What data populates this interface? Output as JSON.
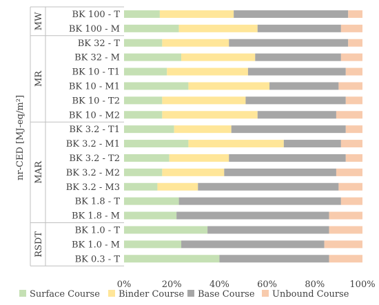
{
  "chart_data": {
    "type": "bar",
    "stacked": "percent",
    "orientation": "horizontal",
    "ylabel": "nr-CED [MJ-eq/m²]",
    "xlim": [
      0,
      100
    ],
    "x_ticks": [
      "0%",
      "20%",
      "40%",
      "60%",
      "80%",
      "100%"
    ],
    "legend_position": "bottom",
    "grid": false,
    "categories": [
      "BK 100 - T",
      "BK 100 - M",
      "BK 32 - T",
      "BK 32 - M",
      "BK 10 - T1",
      "BK 10 - M1",
      "BK 10 - T2",
      "BK 10 - M2",
      "BK 3.2 - T1",
      "BK 3.2 - M1",
      "BK 3.2 - T2",
      "BK 3.2 - M2",
      "BK 3.2 - M3",
      "BK 1.8 - T",
      "BK 1.8 - M",
      "BK 1.0 - T",
      "BK 1.0 - M",
      "BK 0.3 - T"
    ],
    "groups": [
      {
        "label": "MW",
        "count": 2
      },
      {
        "label": "MR",
        "count": 6
      },
      {
        "label": "MAR",
        "count": 7
      },
      {
        "label": "RSDT",
        "count": 3
      }
    ],
    "series": [
      {
        "name": "Surface Course",
        "color": "#c5e0b4",
        "values": [
          15,
          23,
          16,
          24,
          18,
          27,
          16,
          16,
          21,
          27,
          19,
          16,
          14,
          23,
          22,
          35,
          24,
          40
        ]
      },
      {
        "name": "Binder Course",
        "color": "#ffe699",
        "values": [
          31,
          33,
          28,
          31,
          34,
          34,
          35,
          40,
          24,
          40,
          25,
          26,
          17,
          0,
          0,
          0,
          0,
          0
        ]
      },
      {
        "name": "Base Course",
        "color": "#a6a6a6",
        "values": [
          48,
          35,
          50,
          36,
          41,
          29,
          42,
          33,
          48,
          24,
          49,
          47,
          59,
          68,
          64,
          51,
          60,
          46
        ]
      },
      {
        "name": "Unbound Course",
        "color": "#f8cbad",
        "values": [
          6,
          9,
          6,
          9,
          7,
          10,
          7,
          11,
          7,
          9,
          7,
          11,
          10,
          9,
          14,
          14,
          16,
          14
        ]
      }
    ]
  }
}
